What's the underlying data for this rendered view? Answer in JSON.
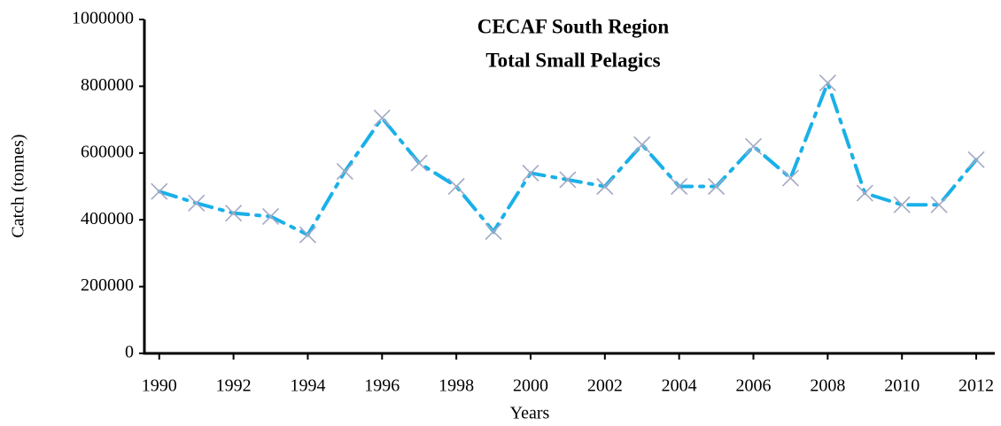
{
  "chart_data": {
    "type": "line",
    "title": [
      "CECAF South Region",
      "Total Small Pelagics"
    ],
    "x_label": "Years",
    "y_label": "Catch (tonnes)",
    "x": [
      1990,
      1991,
      1992,
      1993,
      1994,
      1995,
      1996,
      1997,
      1998,
      1999,
      2000,
      2001,
      2002,
      2003,
      2004,
      2005,
      2006,
      2007,
      2008,
      2009,
      2010,
      2011,
      2012
    ],
    "series": [
      {
        "color": "#1ab0e8",
        "marker_color": "#a3a9c4",
        "values": [
          485000,
          450000,
          420000,
          410000,
          355000,
          545000,
          705000,
          570000,
          500000,
          365000,
          540000,
          520000,
          500000,
          625000,
          500000,
          500000,
          620000,
          525000,
          810000,
          480000,
          445000,
          445000,
          580000
        ]
      }
    ],
    "xlim": [
      1989.6,
      2012.5
    ],
    "xticks": [
      1990,
      1992,
      1994,
      1996,
      1998,
      2000,
      2002,
      2004,
      2006,
      2008,
      2010,
      2012
    ],
    "ylim": [
      0,
      1000000
    ],
    "yticks": [
      0,
      200000,
      400000,
      600000,
      800000,
      1000000
    ]
  }
}
